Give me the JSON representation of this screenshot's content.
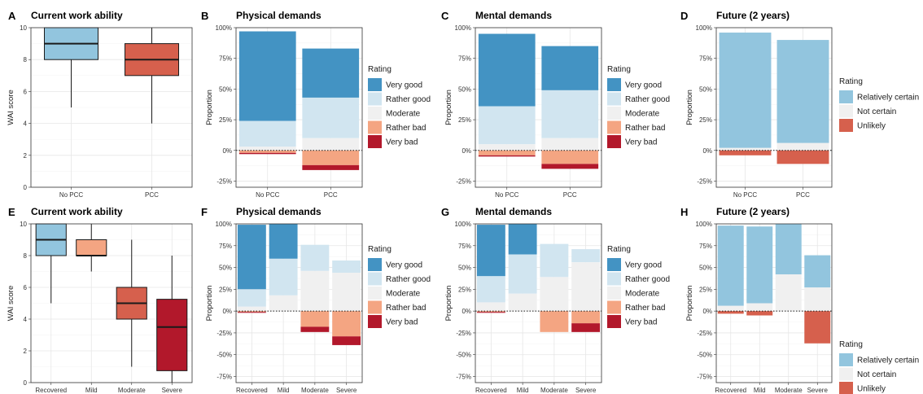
{
  "colors": {
    "very_good": "#4393c3",
    "rather_good": "#d1e5f0",
    "moderate": "#f0f0f0",
    "rather_bad": "#f4a582",
    "very_bad": "#b2182b",
    "relatively_certain": "#92c5de",
    "not_certain": "#f0f0f0",
    "unlikely": "#d6604d",
    "box_no_pcc": "#92c5de",
    "box_pcc": "#d6604d",
    "box_recovered": "#92c5de",
    "box_mild": "#f4a582",
    "box_moderate": "#d6604d",
    "box_severe": "#b2182b"
  },
  "chart_data": [
    {
      "id": "A",
      "type": "boxplot",
      "tag": "A",
      "title": "Current work ability",
      "xlabel": "",
      "ylabel": "WAI score",
      "ylim": [
        0,
        10
      ],
      "yticks": [
        "0",
        "2",
        "4",
        "6",
        "8",
        "10"
      ],
      "categories": [
        "No PCC",
        "PCC"
      ],
      "boxes": [
        {
          "category": "No PCC",
          "min": 5,
          "q1": 8,
          "median": 9,
          "q3": 10,
          "max": 10,
          "color_key": "box_no_pcc"
        },
        {
          "category": "PCC",
          "min": 4,
          "q1": 7,
          "median": 8,
          "q3": 9,
          "max": 10,
          "color_key": "box_pcc"
        }
      ]
    },
    {
      "id": "B",
      "type": "diverging_bar",
      "tag": "B",
      "title": "Physical demands",
      "xlabel": "",
      "ylabel": "Proportion",
      "ylim": [
        -30,
        100
      ],
      "yticks": [
        "-25%",
        "0%",
        "25%",
        "50%",
        "75%",
        "100%"
      ],
      "categories": [
        "No PCC",
        "PCC"
      ],
      "legend_title": "Rating",
      "series": [
        {
          "name": "Very good",
          "color_key": "very_good",
          "values": [
            73,
            40
          ]
        },
        {
          "name": "Rather good",
          "color_key": "rather_good",
          "values": [
            21,
            33
          ]
        },
        {
          "name": "Moderate",
          "color_key": "moderate",
          "values": [
            3,
            10
          ]
        },
        {
          "name": "Rather bad",
          "color_key": "rather_bad",
          "values": [
            -2,
            -12
          ]
        },
        {
          "name": "Very bad",
          "color_key": "very_bad",
          "values": [
            -1,
            -4
          ]
        }
      ]
    },
    {
      "id": "C",
      "type": "diverging_bar",
      "tag": "C",
      "title": "Mental demands",
      "xlabel": "",
      "ylabel": "Proportion",
      "ylim": [
        -30,
        100
      ],
      "yticks": [
        "-25%",
        "0%",
        "25%",
        "50%",
        "75%",
        "100%"
      ],
      "categories": [
        "No PCC",
        "PCC"
      ],
      "legend_title": "Rating",
      "series": [
        {
          "name": "Very good",
          "color_key": "very_good",
          "values": [
            59,
            36
          ]
        },
        {
          "name": "Rather good",
          "color_key": "rather_good",
          "values": [
            31,
            39
          ]
        },
        {
          "name": "Moderate",
          "color_key": "moderate",
          "values": [
            5,
            10
          ]
        },
        {
          "name": "Rather bad",
          "color_key": "rather_bad",
          "values": [
            -4,
            -11
          ]
        },
        {
          "name": "Very bad",
          "color_key": "very_bad",
          "values": [
            -1,
            -4
          ]
        }
      ]
    },
    {
      "id": "D",
      "type": "diverging_bar",
      "tag": "D",
      "title": "Future (2 years)",
      "xlabel": "",
      "ylabel": "Proportion",
      "ylim": [
        -30,
        100
      ],
      "yticks": [
        "-25%",
        "0%",
        "25%",
        "50%",
        "75%",
        "100%"
      ],
      "categories": [
        "No PCC",
        "PCC"
      ],
      "legend_title": "Rating",
      "series": [
        {
          "name": "Relatively certain",
          "color_key": "relatively_certain",
          "values": [
            94,
            84
          ]
        },
        {
          "name": "Not certain",
          "color_key": "not_certain",
          "values": [
            2,
            6
          ]
        },
        {
          "name": "Unlikely",
          "color_key": "unlikely",
          "values": [
            -4,
            -11
          ]
        }
      ]
    },
    {
      "id": "E",
      "type": "boxplot",
      "tag": "E",
      "title": "Current work ability",
      "xlabel": "",
      "ylabel": "WAI score",
      "ylim": [
        0,
        10
      ],
      "yticks": [
        "0",
        "2",
        "4",
        "6",
        "8",
        "10"
      ],
      "categories": [
        "Recovered",
        "Mild",
        "Moderate",
        "Severe"
      ],
      "boxes": [
        {
          "category": "Recovered",
          "min": 5,
          "q1": 8,
          "median": 9,
          "q3": 10,
          "max": 10,
          "color_key": "box_recovered"
        },
        {
          "category": "Mild",
          "min": 7,
          "q1": 8,
          "median": 8,
          "q3": 9,
          "max": 10,
          "color_key": "box_mild"
        },
        {
          "category": "Moderate",
          "min": 1,
          "q1": 4,
          "median": 5,
          "q3": 6,
          "max": 9,
          "color_key": "box_moderate"
        },
        {
          "category": "Severe",
          "min": 0,
          "q1": 0.75,
          "median": 3.5,
          "q3": 5.25,
          "max": 8,
          "color_key": "box_severe"
        }
      ]
    },
    {
      "id": "F",
      "type": "diverging_bar",
      "tag": "F",
      "title": "Physical demands",
      "xlabel": "",
      "ylabel": "Proportion",
      "ylim": [
        -82,
        100
      ],
      "yticks": [
        "-75%",
        "-50%",
        "-25%",
        "0%",
        "25%",
        "50%",
        "75%",
        "100%"
      ],
      "categories": [
        "Recovered",
        "Mild",
        "Moderate",
        "Severe"
      ],
      "legend_title": "Rating",
      "series": [
        {
          "name": "Very good",
          "color_key": "very_good",
          "values": [
            74,
            40,
            0,
            0
          ]
        },
        {
          "name": "Rather good",
          "color_key": "rather_good",
          "values": [
            20,
            42,
            30,
            14
          ]
        },
        {
          "name": "Moderate",
          "color_key": "moderate",
          "values": [
            5,
            18,
            46,
            44
          ]
        },
        {
          "name": "Rather bad",
          "color_key": "rather_bad",
          "values": [
            -1,
            0,
            -18,
            -29
          ]
        },
        {
          "name": "Very bad",
          "color_key": "very_bad",
          "values": [
            -1,
            0,
            -6,
            -10
          ]
        }
      ]
    },
    {
      "id": "G",
      "type": "diverging_bar",
      "tag": "G",
      "title": "Mental demands",
      "xlabel": "",
      "ylabel": "Proportion",
      "ylim": [
        -82,
        100
      ],
      "yticks": [
        "-75%",
        "-50%",
        "-25%",
        "0%",
        "25%",
        "50%",
        "75%",
        "100%"
      ],
      "categories": [
        "Recovered",
        "Mild",
        "Moderate",
        "Severe"
      ],
      "legend_title": "Rating",
      "series": [
        {
          "name": "Very good",
          "color_key": "very_good",
          "values": [
            59,
            35,
            0,
            0
          ]
        },
        {
          "name": "Rather good",
          "color_key": "rather_good",
          "values": [
            30,
            45,
            38,
            15
          ]
        },
        {
          "name": "Moderate",
          "color_key": "moderate",
          "values": [
            10,
            20,
            39,
            56
          ]
        },
        {
          "name": "Rather bad",
          "color_key": "rather_bad",
          "values": [
            -1,
            0,
            -24,
            -14
          ]
        },
        {
          "name": "Very bad",
          "color_key": "very_bad",
          "values": [
            -1,
            0,
            0,
            -10
          ]
        }
      ]
    },
    {
      "id": "H",
      "type": "diverging_bar",
      "tag": "H",
      "title": "Future (2 years)",
      "xlabel": "",
      "ylabel": "Proportion",
      "ylim": [
        -82,
        100
      ],
      "yticks": [
        "-75%",
        "-50%",
        "-25%",
        "0%",
        "25%",
        "50%",
        "75%",
        "100%"
      ],
      "categories": [
        "Recovered",
        "Mild",
        "Moderate",
        "Severe"
      ],
      "legend_title": "Rating",
      "series": [
        {
          "name": "Relatively certain",
          "color_key": "relatively_certain",
          "values": [
            92,
            88,
            58,
            37
          ]
        },
        {
          "name": "Not certain",
          "color_key": "not_certain",
          "values": [
            6,
            9,
            42,
            27
          ]
        },
        {
          "name": "Unlikely",
          "color_key": "unlikely",
          "values": [
            -3,
            -5,
            0,
            -37
          ]
        }
      ]
    }
  ]
}
